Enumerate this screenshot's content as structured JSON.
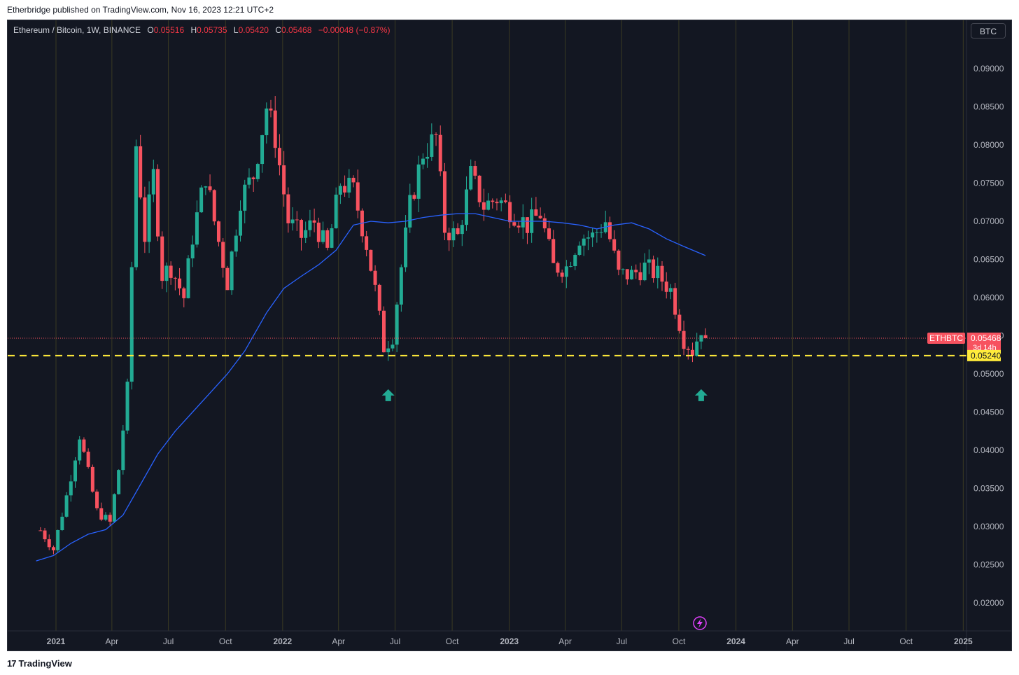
{
  "header": {
    "published": "Etherbridge published on TradingView.com, Nov 16, 2023 12:21 UTC+2"
  },
  "legend": {
    "symbol": "Ethereum / Bitcoin, 1W, BINANCE",
    "o_label": "O",
    "o_value": "0.05516",
    "h_label": "H",
    "h_value": "0.05735",
    "l_label": "L",
    "l_value": "0.05420",
    "c_label": "C",
    "c_value": "0.05468",
    "change": "−0.00048 (−0.87%)"
  },
  "currency_button": "BTC",
  "price_badges": {
    "ticker": "ETHBTC",
    "last_price": "0.05468",
    "countdown": "3d 14h",
    "level_price": "0.05240"
  },
  "footer": {
    "brand": "TradingView",
    "brand_mark": "17"
  },
  "colors": {
    "bull": "#22ab94",
    "bear": "#f7525f",
    "ma": "#2962ff",
    "level": "#ffeb3b",
    "background": "#131722"
  },
  "chart_data": {
    "type": "candlestick",
    "interval": "1W",
    "y_ticks": [
      "0.09000",
      "0.08500",
      "0.08000",
      "0.07500",
      "0.07000",
      "0.06500",
      "0.06000",
      "0.05500",
      "0.05000",
      "0.04500",
      "0.04000",
      "0.03500",
      "0.03000",
      "0.02500",
      "0.02000"
    ],
    "x_ticks": [
      {
        "label": "2021",
        "bold": true,
        "date": "2021-01-01"
      },
      {
        "label": "Apr",
        "bold": false,
        "date": "2021-04-01"
      },
      {
        "label": "Jul",
        "bold": false,
        "date": "2021-07-01"
      },
      {
        "label": "Oct",
        "bold": false,
        "date": "2021-10-01"
      },
      {
        "label": "2022",
        "bold": true,
        "date": "2022-01-01"
      },
      {
        "label": "Apr",
        "bold": false,
        "date": "2022-04-01"
      },
      {
        "label": "Jul",
        "bold": false,
        "date": "2022-07-01"
      },
      {
        "label": "Oct",
        "bold": false,
        "date": "2022-10-01"
      },
      {
        "label": "2023",
        "bold": true,
        "date": "2023-01-01"
      },
      {
        "label": "Apr",
        "bold": false,
        "date": "2023-04-01"
      },
      {
        "label": "Jul",
        "bold": false,
        "date": "2023-07-01"
      },
      {
        "label": "Oct",
        "bold": false,
        "date": "2023-10-01"
      },
      {
        "label": "2024",
        "bold": true,
        "date": "2024-01-01"
      },
      {
        "label": "Apr",
        "bold": false,
        "date": "2024-04-01"
      },
      {
        "label": "Jul",
        "bold": false,
        "date": "2024-07-01"
      },
      {
        "label": "Oct",
        "bold": false,
        "date": "2024-10-01"
      },
      {
        "label": "2025",
        "bold": true,
        "date": "2025-01-01"
      }
    ],
    "close_path": [
      [
        "2020-12-07",
        0.0295
      ],
      [
        "2020-12-28",
        0.027
      ],
      [
        "2021-01-18",
        0.034
      ],
      [
        "2021-02-08",
        0.042
      ],
      [
        "2021-02-22",
        0.037
      ],
      [
        "2021-03-08",
        0.032
      ],
      [
        "2021-03-29",
        0.0305
      ],
      [
        "2021-04-12",
        0.0375
      ],
      [
        "2021-04-26",
        0.048
      ],
      [
        "2021-05-10",
        0.08
      ],
      [
        "2021-05-24",
        0.068
      ],
      [
        "2021-06-07",
        0.076
      ],
      [
        "2021-06-21",
        0.063
      ],
      [
        "2021-07-05",
        0.064
      ],
      [
        "2021-07-26",
        0.06
      ],
      [
        "2021-08-09",
        0.068
      ],
      [
        "2021-08-30",
        0.076
      ],
      [
        "2021-09-13",
        0.07
      ],
      [
        "2021-10-04",
        0.062
      ],
      [
        "2021-10-25",
        0.073
      ],
      [
        "2021-11-15",
        0.076
      ],
      [
        "2021-12-06",
        0.085
      ],
      [
        "2021-12-20",
        0.081
      ],
      [
        "2022-01-10",
        0.07
      ],
      [
        "2022-01-31",
        0.068
      ],
      [
        "2022-02-21",
        0.07
      ],
      [
        "2022-03-14",
        0.066
      ],
      [
        "2022-04-04",
        0.075
      ],
      [
        "2022-04-25",
        0.074
      ],
      [
        "2022-05-16",
        0.067
      ],
      [
        "2022-05-30",
        0.061
      ],
      [
        "2022-06-13",
        0.0535
      ],
      [
        "2022-06-27",
        0.055
      ],
      [
        "2022-07-11",
        0.064
      ],
      [
        "2022-07-25",
        0.072
      ],
      [
        "2022-08-15",
        0.079
      ],
      [
        "2022-09-05",
        0.081
      ],
      [
        "2022-09-19",
        0.069
      ],
      [
        "2022-10-10",
        0.068
      ],
      [
        "2022-10-31",
        0.076
      ],
      [
        "2022-11-21",
        0.072
      ],
      [
        "2022-12-12",
        0.073
      ],
      [
        "2023-01-09",
        0.071
      ],
      [
        "2023-01-30",
        0.0695
      ],
      [
        "2023-02-20",
        0.071
      ],
      [
        "2023-03-13",
        0.064
      ],
      [
        "2023-04-03",
        0.064
      ],
      [
        "2023-04-24",
        0.068
      ],
      [
        "2023-05-15",
        0.068
      ],
      [
        "2023-06-05",
        0.07
      ],
      [
        "2023-06-26",
        0.063
      ],
      [
        "2023-07-17",
        0.063
      ],
      [
        "2023-08-07",
        0.064
      ],
      [
        "2023-08-28",
        0.063
      ],
      [
        "2023-09-18",
        0.061
      ],
      [
        "2023-10-09",
        0.0545
      ],
      [
        "2023-10-23",
        0.053
      ],
      [
        "2023-11-06",
        0.056
      ],
      [
        "2023-11-13",
        0.05468
      ]
    ],
    "moving_average": [
      [
        "2020-11-30",
        0.0255
      ],
      [
        "2020-12-28",
        0.0262
      ],
      [
        "2021-01-25",
        0.0278
      ],
      [
        "2021-02-22",
        0.029
      ],
      [
        "2021-03-22",
        0.0296
      ],
      [
        "2021-04-19",
        0.0315
      ],
      [
        "2021-05-17",
        0.0355
      ],
      [
        "2021-06-14",
        0.0395
      ],
      [
        "2021-07-12",
        0.0425
      ],
      [
        "2021-08-09",
        0.045
      ],
      [
        "2021-09-06",
        0.0475
      ],
      [
        "2021-10-04",
        0.05
      ],
      [
        "2021-11-01",
        0.053
      ],
      [
        "2021-12-06",
        0.058
      ],
      [
        "2022-01-03",
        0.0612
      ],
      [
        "2022-01-31",
        0.0628
      ],
      [
        "2022-02-28",
        0.0643
      ],
      [
        "2022-03-28",
        0.0662
      ],
      [
        "2022-04-25",
        0.0695
      ],
      [
        "2022-05-23",
        0.07
      ],
      [
        "2022-06-20",
        0.0698
      ],
      [
        "2022-07-18",
        0.07
      ],
      [
        "2022-08-15",
        0.0705
      ],
      [
        "2022-09-12",
        0.0708
      ],
      [
        "2022-10-10",
        0.071
      ],
      [
        "2022-11-07",
        0.071
      ],
      [
        "2022-12-05",
        0.0705
      ],
      [
        "2023-01-02",
        0.07
      ],
      [
        "2023-01-30",
        0.07
      ],
      [
        "2023-02-27",
        0.07
      ],
      [
        "2023-03-27",
        0.0698
      ],
      [
        "2023-04-24",
        0.0695
      ],
      [
        "2023-05-22",
        0.069
      ],
      [
        "2023-06-19",
        0.0695
      ],
      [
        "2023-07-17",
        0.0698
      ],
      [
        "2023-08-14",
        0.069
      ],
      [
        "2023-09-11",
        0.0677
      ],
      [
        "2023-10-09",
        0.0667
      ],
      [
        "2023-11-13",
        0.0655
      ]
    ],
    "horizontal_level": 0.0524,
    "last_price": 0.05468,
    "arrows": [
      {
        "date": "2022-06-20",
        "direction": "up"
      },
      {
        "date": "2023-11-06",
        "direction": "up"
      }
    ]
  }
}
